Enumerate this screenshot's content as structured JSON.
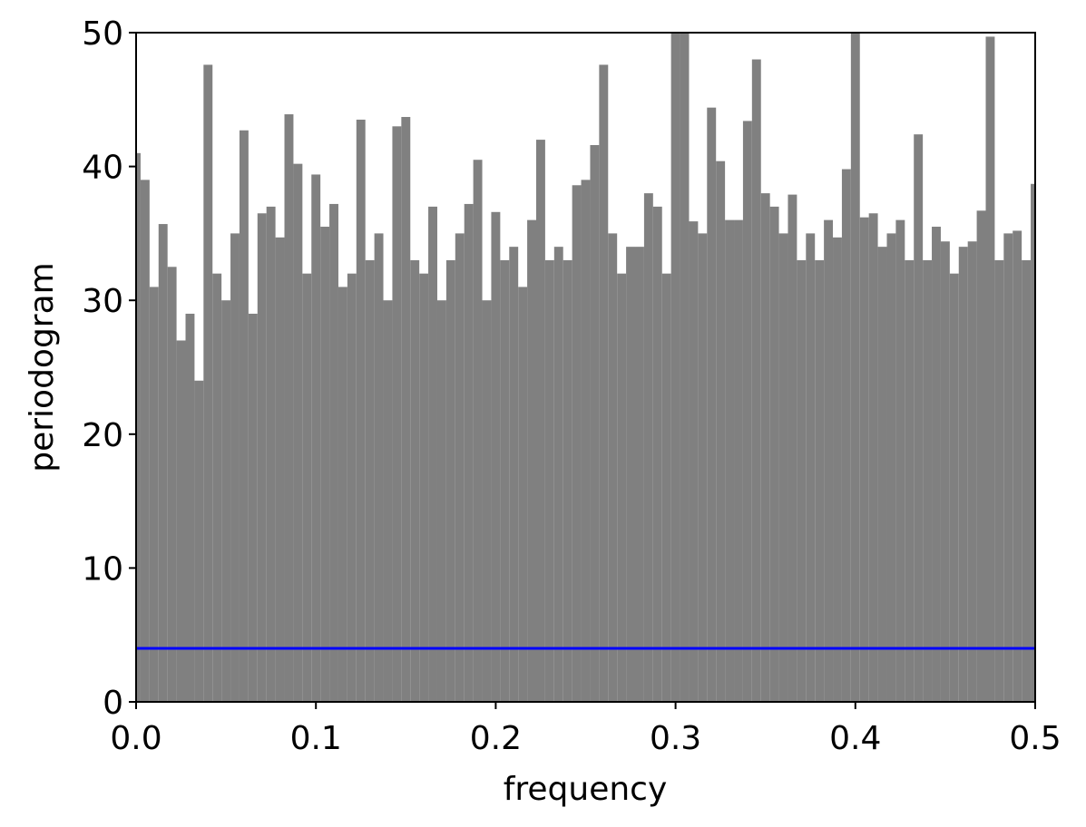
{
  "chart_data": {
    "type": "periodogram",
    "xlabel": "frequency",
    "ylabel": "periodogram",
    "series": [
      {
        "color": "#808080",
        "x": [
          0,
          0.005,
          0.01,
          0.015,
          0.02,
          0.025,
          0.03,
          0.035,
          0.04,
          0.045,
          0.05,
          0.055,
          0.06,
          0.065,
          0.07,
          0.075,
          0.08,
          0.085,
          0.09,
          0.095,
          0.1,
          0.105,
          0.11,
          0.115,
          0.12,
          0.125,
          0.13,
          0.135,
          0.14,
          0.145,
          0.15,
          0.155,
          0.16,
          0.165,
          0.17,
          0.175,
          0.18,
          0.185,
          0.19,
          0.195,
          0.2,
          0.205,
          0.21,
          0.215,
          0.22,
          0.225,
          0.23,
          0.235,
          0.24,
          0.245,
          0.25,
          0.255,
          0.26,
          0.265,
          0.27,
          0.275,
          0.28,
          0.285,
          0.29,
          0.295,
          0.3,
          0.305,
          0.31,
          0.315,
          0.32,
          0.325,
          0.33,
          0.335,
          0.34,
          0.345,
          0.35,
          0.355,
          0.36,
          0.365,
          0.37,
          0.375,
          0.38,
          0.385,
          0.39,
          0.395,
          0.4,
          0.405,
          0.41,
          0.415,
          0.42,
          0.425,
          0.43,
          0.435,
          0.44,
          0.445,
          0.45,
          0.455,
          0.46,
          0.465,
          0.47,
          0.475,
          0.48,
          0.485,
          0.49,
          0.495,
          0.5
        ],
        "values": [
          41,
          39,
          31,
          35.7,
          32.5,
          27,
          29,
          24,
          47.6,
          32,
          30,
          35,
          42.7,
          29,
          36.5,
          37,
          34.7,
          43.9,
          40.2,
          32,
          39.4,
          35.5,
          37.2,
          31,
          32,
          43.5,
          33,
          35,
          30,
          43,
          43.7,
          33,
          32,
          37,
          30,
          33,
          35,
          37.2,
          40.5,
          30,
          36.6,
          33,
          34,
          31,
          36,
          42,
          33,
          34,
          33,
          38.6,
          39,
          41.6,
          47.6,
          35,
          32,
          34,
          34,
          38,
          37,
          32,
          50.5,
          51,
          35.9,
          35,
          44.4,
          40.4,
          36,
          36,
          43.4,
          48,
          38,
          37,
          35,
          37.9,
          33,
          35,
          33,
          36,
          34.7,
          39.8,
          50.3,
          36.2,
          36.5,
          34,
          35,
          36,
          33,
          42.4,
          33,
          35.5,
          34.4,
          32,
          34,
          34.4,
          36.7,
          49.7,
          33,
          35,
          35.2,
          33,
          38.7
        ]
      },
      {
        "color": "#0000ff",
        "x": [
          0,
          0.5
        ],
        "values": [
          4,
          4
        ]
      }
    ],
    "xlim": [
      0,
      0.5
    ],
    "xticks": [
      {
        "value": 0,
        "label": "0.0"
      },
      0.1,
      0.2,
      0.3,
      0.4,
      0.5
    ],
    "ylim": [
      0,
      50
    ],
    "yticks": [
      0,
      10,
      20,
      30,
      40,
      50
    ]
  }
}
